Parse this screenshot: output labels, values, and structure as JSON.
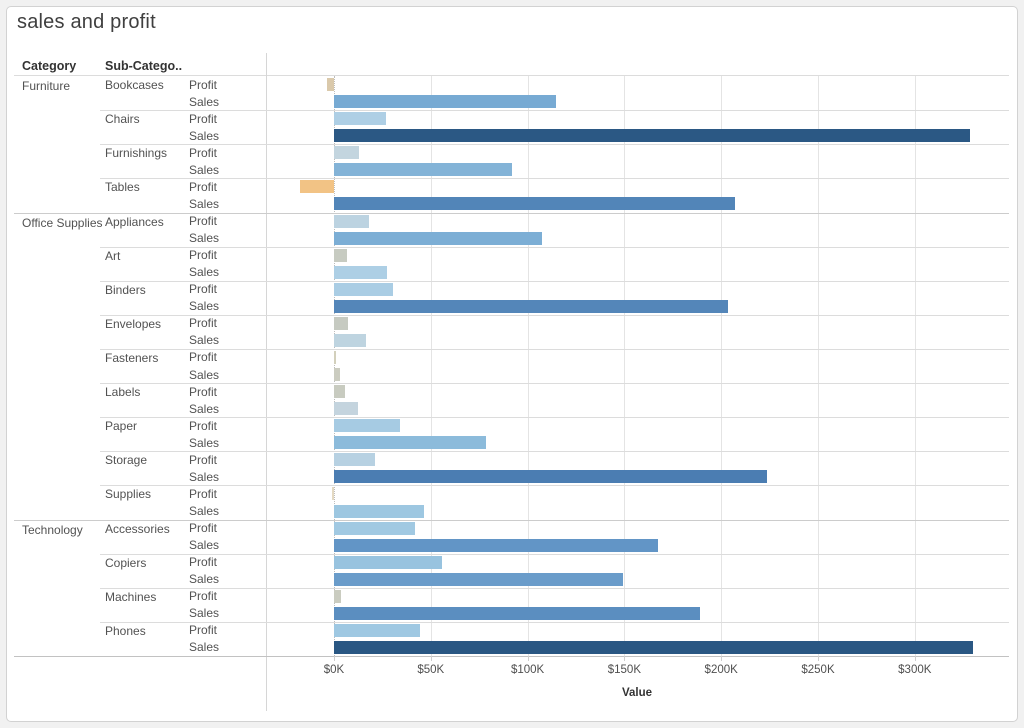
{
  "window": {
    "title": "sales and profit"
  },
  "table": {
    "col1_header": "Category",
    "col2_header": "Sub-Catego.."
  },
  "axis": {
    "title": "Value",
    "ticks": [
      "$0K",
      "$50K",
      "$100K",
      "$150K",
      "$200K",
      "$250K",
      "$300K"
    ],
    "tick_values_k": [
      0,
      50,
      100,
      150,
      200,
      250,
      300
    ]
  },
  "colors": {
    "negative_accent": "#f2c385",
    "max_positive_accent": "#2a5783",
    "near_zero": "#caccc0"
  },
  "chart_data": {
    "type": "bar",
    "orientation": "horizontal",
    "title": "sales and profit",
    "xlabel": "Value",
    "unit": "USD thousands",
    "xlim_k": [
      -35,
      350
    ],
    "measures": [
      "Profit",
      "Sales"
    ],
    "groups": [
      {
        "category": "Furniture",
        "subcategories": [
          {
            "name": "Bookcases",
            "profit_k": -3.5,
            "sales_k": 114.9,
            "profit_color": "#dac9ab",
            "sales_color": "#77aad3"
          },
          {
            "name": "Chairs",
            "profit_k": 26.6,
            "sales_k": 328.4,
            "profit_color": "#aecfe5",
            "sales_color": "#2b5884"
          },
          {
            "name": "Furnishings",
            "profit_k": 13.1,
            "sales_k": 91.7,
            "profit_color": "#c3d5df",
            "sales_color": "#83b3d7"
          },
          {
            "name": "Tables",
            "profit_k": -17.7,
            "sales_k": 207.0,
            "profit_color": "#f2c385",
            "sales_color": "#5285b8"
          }
        ]
      },
      {
        "category": "Office Supplies",
        "subcategories": [
          {
            "name": "Appliances",
            "profit_k": 18.1,
            "sales_k": 107.5,
            "profit_color": "#bcd3e1",
            "sales_color": "#7caed5"
          },
          {
            "name": "Art",
            "profit_k": 6.5,
            "sales_k": 27.1,
            "profit_color": "#c7cbc1",
            "sales_color": "#adcfe5"
          },
          {
            "name": "Binders",
            "profit_k": 30.2,
            "sales_k": 203.4,
            "profit_color": "#aacde4",
            "sales_color": "#5486b9"
          },
          {
            "name": "Envelopes",
            "profit_k": 7.0,
            "sales_k": 16.5,
            "profit_color": "#c6cac1",
            "sales_color": "#bed4e0"
          },
          {
            "name": "Fasteners",
            "profit_k": 0.9,
            "sales_k": 3.0,
            "profit_color": "#d3d0bc",
            "sales_color": "#cbccc0"
          },
          {
            "name": "Labels",
            "profit_k": 5.5,
            "sales_k": 12.5,
            "profit_color": "#c8cbc0",
            "sales_color": "#c4d4de"
          },
          {
            "name": "Paper",
            "profit_k": 34.1,
            "sales_k": 78.5,
            "profit_color": "#a6cbe3",
            "sales_color": "#8cbbdb"
          },
          {
            "name": "Storage",
            "profit_k": 21.3,
            "sales_k": 223.8,
            "profit_color": "#b7d1e2",
            "sales_color": "#4b7db2"
          },
          {
            "name": "Supplies",
            "profit_k": -1.2,
            "sales_k": 46.7,
            "profit_color": "#e4d9c2",
            "sales_color": "#9dc7e1"
          }
        ]
      },
      {
        "category": "Technology",
        "subcategories": [
          {
            "name": "Accessories",
            "profit_k": 41.9,
            "sales_k": 167.4,
            "profit_color": "#a1c9e2",
            "sales_color": "#6295c6"
          },
          {
            "name": "Copiers",
            "profit_k": 55.6,
            "sales_k": 149.5,
            "profit_color": "#98c3df",
            "sales_color": "#6a9cca"
          },
          {
            "name": "Machines",
            "profit_k": 3.4,
            "sales_k": 189.2,
            "profit_color": "#caccc0",
            "sales_color": "#5b8ec0"
          },
          {
            "name": "Phones",
            "profit_k": 44.5,
            "sales_k": 330.0,
            "profit_color": "#9fc8e2",
            "sales_color": "#2a5783"
          }
        ]
      }
    ]
  }
}
